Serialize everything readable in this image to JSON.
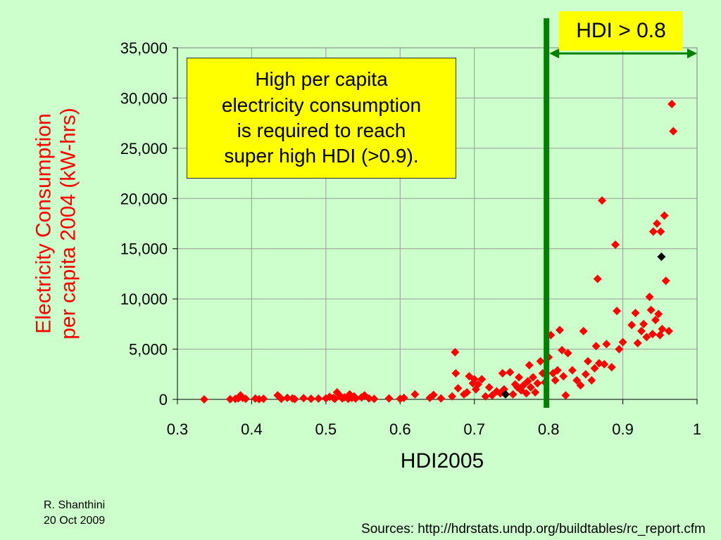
{
  "chart_data": {
    "type": "scatter",
    "xlabel": "HDI2005",
    "ylabel_lines": [
      "Electricity Consumption",
      "per capita 2004 (kW-hrs)"
    ],
    "xlim": [
      0.3,
      1.0
    ],
    "ylim": [
      0,
      35000
    ],
    "x_ticks": [
      0.3,
      0.4,
      0.5,
      0.6,
      0.7,
      0.8,
      0.9,
      1.0
    ],
    "x_tick_labels": [
      "0.3",
      "0.4",
      "0.5",
      "0.6",
      "0.7",
      "0.8",
      "0.9",
      "1"
    ],
    "y_ticks": [
      0,
      5000,
      10000,
      15000,
      20000,
      25000,
      30000,
      35000
    ],
    "y_tick_labels": [
      "0",
      "5,000",
      "10,000",
      "15,000",
      "20,000",
      "25,000",
      "30,000",
      "35,000"
    ],
    "grid": true,
    "colors": {
      "points": "#ff0000",
      "highlight": "#000000",
      "threshold": "#008000",
      "ylabel": "#ff0000"
    },
    "threshold": {
      "x": 0.8
    },
    "points": [
      [
        0.336,
        0
      ],
      [
        0.371,
        20
      ],
      [
        0.378,
        50
      ],
      [
        0.382,
        100
      ],
      [
        0.385,
        400
      ],
      [
        0.388,
        150
      ],
      [
        0.392,
        50
      ],
      [
        0.405,
        80
      ],
      [
        0.41,
        20
      ],
      [
        0.416,
        60
      ],
      [
        0.435,
        400
      ],
      [
        0.438,
        200
      ],
      [
        0.44,
        50
      ],
      [
        0.448,
        150
      ],
      [
        0.455,
        100
      ],
      [
        0.458,
        30
      ],
      [
        0.47,
        120
      ],
      [
        0.48,
        60
      ],
      [
        0.49,
        80
      ],
      [
        0.5,
        100
      ],
      [
        0.505,
        250
      ],
      [
        0.51,
        150
      ],
      [
        0.512,
        50
      ],
      [
        0.515,
        700
      ],
      [
        0.52,
        300
      ],
      [
        0.522,
        100
      ],
      [
        0.525,
        200
      ],
      [
        0.53,
        50
      ],
      [
        0.532,
        500
      ],
      [
        0.535,
        150
      ],
      [
        0.538,
        300
      ],
      [
        0.54,
        80
      ],
      [
        0.548,
        200
      ],
      [
        0.552,
        400
      ],
      [
        0.558,
        100
      ],
      [
        0.565,
        50
      ],
      [
        0.585,
        100
      ],
      [
        0.6,
        50
      ],
      [
        0.605,
        150
      ],
      [
        0.62,
        500
      ],
      [
        0.64,
        150
      ],
      [
        0.645,
        450
      ],
      [
        0.655,
        100
      ],
      [
        0.67,
        300
      ],
      [
        0.674,
        4700
      ],
      [
        0.675,
        2600
      ],
      [
        0.678,
        1100
      ],
      [
        0.686,
        500
      ],
      [
        0.69,
        700
      ],
      [
        0.693,
        2300
      ],
      [
        0.698,
        1600
      ],
      [
        0.7,
        2000
      ],
      [
        0.702,
        1000
      ],
      [
        0.705,
        1500
      ],
      [
        0.71,
        2000
      ],
      [
        0.715,
        300
      ],
      [
        0.72,
        1200
      ],
      [
        0.724,
        400
      ],
      [
        0.73,
        800
      ],
      [
        0.735,
        600
      ],
      [
        0.738,
        2600
      ],
      [
        0.74,
        1000
      ],
      [
        0.748,
        2700
      ],
      [
        0.752,
        500
      ],
      [
        0.755,
        1500
      ],
      [
        0.758,
        1200
      ],
      [
        0.76,
        2200
      ],
      [
        0.763,
        900
      ],
      [
        0.766,
        1400
      ],
      [
        0.77,
        600
      ],
      [
        0.772,
        1800
      ],
      [
        0.774,
        3400
      ],
      [
        0.776,
        1200
      ],
      [
        0.779,
        2200
      ],
      [
        0.782,
        700
      ],
      [
        0.785,
        1600
      ],
      [
        0.789,
        3800
      ],
      [
        0.792,
        2600
      ],
      [
        0.795,
        1700
      ],
      [
        0.8,
        4200
      ],
      [
        0.803,
        6400
      ],
      [
        0.806,
        2600
      ],
      [
        0.809,
        1900
      ],
      [
        0.812,
        2900
      ],
      [
        0.815,
        6900
      ],
      [
        0.818,
        4900
      ],
      [
        0.82,
        2300
      ],
      [
        0.823,
        400
      ],
      [
        0.826,
        4600
      ],
      [
        0.832,
        2900
      ],
      [
        0.838,
        1900
      ],
      [
        0.843,
        1400
      ],
      [
        0.847,
        6800
      ],
      [
        0.85,
        2500
      ],
      [
        0.853,
        3800
      ],
      [
        0.858,
        1900
      ],
      [
        0.862,
        3100
      ],
      [
        0.864,
        5300
      ],
      [
        0.866,
        12000
      ],
      [
        0.868,
        3600
      ],
      [
        0.872,
        19800
      ],
      [
        0.875,
        3500
      ],
      [
        0.878,
        5500
      ],
      [
        0.885,
        3200
      ],
      [
        0.89,
        15400
      ],
      [
        0.892,
        8800
      ],
      [
        0.895,
        5000
      ],
      [
        0.9,
        5700
      ],
      [
        0.912,
        7400
      ],
      [
        0.917,
        8600
      ],
      [
        0.92,
        5600
      ],
      [
        0.925,
        6800
      ],
      [
        0.928,
        7500
      ],
      [
        0.932,
        6200
      ],
      [
        0.936,
        10200
      ],
      [
        0.938,
        8900
      ],
      [
        0.94,
        6500
      ],
      [
        0.941,
        16700
      ],
      [
        0.944,
        7900
      ],
      [
        0.946,
        17500
      ],
      [
        0.948,
        8500
      ],
      [
        0.95,
        6400
      ],
      [
        0.951,
        16700
      ],
      [
        0.953,
        7000
      ],
      [
        0.956,
        18300
      ],
      [
        0.958,
        11800
      ],
      [
        0.962,
        6800
      ],
      [
        0.966,
        29400
      ],
      [
        0.968,
        26700
      ]
    ],
    "highlight_points": [
      [
        0.742,
        500
      ],
      [
        0.952,
        14200
      ]
    ]
  },
  "hdi_box": "HDI > 0.8",
  "callout_lines": [
    "High per capita",
    "electricity consumption",
    "is required to reach",
    "super high HDI (>0.9)."
  ],
  "author": "R. Shanthini",
  "date": "20 Oct 2009",
  "sources": "Sources: http://hdrstats.undp.org/buildtables/rc_report.cfm"
}
